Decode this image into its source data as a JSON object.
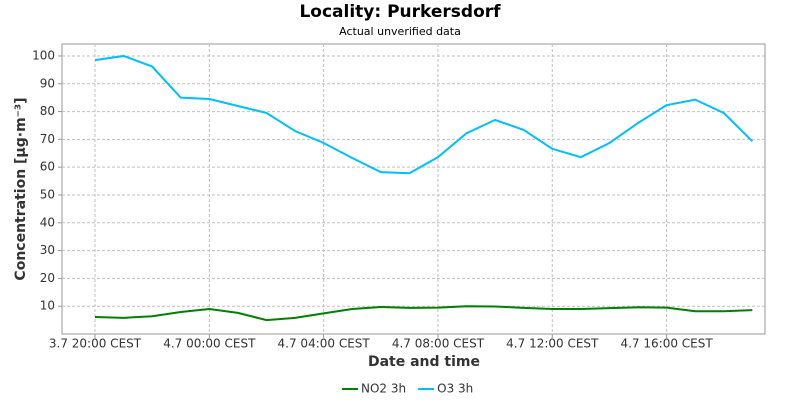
{
  "chart_data": {
    "type": "line",
    "title": "Locality: Purkersdorf",
    "subtitle": "Actual unverified data",
    "xlabel": "Date and time",
    "ylabel": "Concentration [µg·m⁻³]",
    "categories": [
      "3.7 20:00 CEST",
      null,
      null,
      null,
      "4.7 00:00 CEST",
      null,
      null,
      null,
      "4.7 04:00 CEST",
      null,
      null,
      null,
      "4.7 08:00 CEST",
      null,
      null,
      null,
      "4.7 12:00 CEST",
      null,
      null,
      null,
      "4.7 16:00 CEST",
      null,
      null,
      null
    ],
    "series": [
      {
        "name": "NO2 3h",
        "color": "#008000",
        "values": [
          6.1,
          5.8,
          6.4,
          7.9,
          9.0,
          7.6,
          5.0,
          5.8,
          7.4,
          9.0,
          9.7,
          9.4,
          9.5,
          10.0,
          9.9,
          9.4,
          9.0,
          9.0,
          9.3,
          9.6,
          9.5,
          8.2,
          8.2,
          8.6
        ]
      },
      {
        "name": "O3 3h",
        "color": "#00bfff",
        "values": [
          98.5,
          100,
          96.2,
          85,
          84.5,
          82,
          79.5,
          73,
          68.7,
          63.3,
          58.2,
          57.8,
          63.6,
          72.2,
          77,
          73.4,
          66.6,
          63.6,
          68.7,
          75.9,
          82.3,
          84.3,
          79.5,
          69.3
        ]
      }
    ],
    "ylim": [
      0,
      104.3
    ],
    "yticks": [
      10,
      20,
      30,
      40,
      50,
      60,
      70,
      80,
      90,
      100
    ],
    "grid": true,
    "legend": "bottom"
  }
}
